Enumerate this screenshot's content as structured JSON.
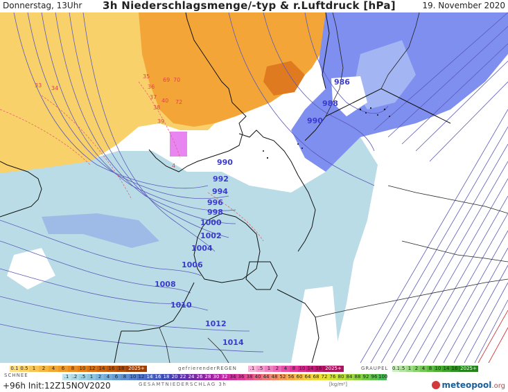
{
  "header": {
    "day_time": "Donnerstag, 13Uhr",
    "title": "3h Niederschlagsmenge/-typ & r.Luftdruck [hPa]",
    "date": "19. November 2020"
  },
  "map": {
    "isobar_labels": [
      "986",
      "988",
      "990",
      "990",
      "992",
      "994",
      "996",
      "998",
      "1000",
      "1002",
      "1004",
      "1006",
      "1008",
      "1010",
      "1012",
      "1014"
    ],
    "small_labels": [
      "33",
      "34",
      "35",
      "36",
      "37",
      "38",
      "39",
      "40",
      "69",
      "70",
      "72",
      "4"
    ],
    "colors": {
      "sea": "#b9dce6",
      "land_green": "#ffffff",
      "rain_yellow": "#f8d16a",
      "rain_orange": "#f3a637",
      "rain_dark_orange": "#e07a20",
      "snow_blue": "#7f8ff0",
      "snow_light": "#a3b6f3",
      "isobar": "#5a5ab8",
      "coast": "#111111",
      "border": "#222222",
      "red_line": "#c22"
    }
  },
  "legend": {
    "rain_label": "gefrierenderREGEN",
    "graupel_label": "GRAUPEL",
    "snow_label": "SCHNEE",
    "rain_scale": [
      "0.1",
      "0.5",
      "1",
      "2",
      "4",
      "6",
      "8",
      "10",
      "12",
      "14",
      "16",
      "18",
      "2025+"
    ],
    "freezing_scale": [
      ".1",
      ".5",
      "1",
      "2",
      "4",
      "8",
      "10",
      "14",
      "16",
      "2025+"
    ],
    "graupel_scale": [
      "0.1",
      ".5",
      "1",
      "2",
      "4",
      "8",
      "10",
      "14",
      "16",
      "2025+"
    ],
    "snow_scale": [
      ".1",
      ".2",
      ".5",
      "1",
      "2",
      "4",
      "6",
      "8",
      "10",
      "12",
      "14",
      "16",
      "18",
      "20",
      "22",
      "24",
      "26",
      "28",
      "30",
      "32",
      "34",
      "36",
      "38",
      "40",
      "44",
      "48",
      "52",
      "56",
      "60",
      "64",
      "68",
      "72",
      "76",
      "80",
      "84",
      "88",
      "92",
      "96",
      "100"
    ],
    "sum_title": "GESAMTNIEDERSCHLAG 3h",
    "sum_unit": "[kg/m²]",
    "run_info": "+96h  Init:12Z15NOV2020",
    "logo": "meteopool",
    "logo_suffix": ".org"
  }
}
